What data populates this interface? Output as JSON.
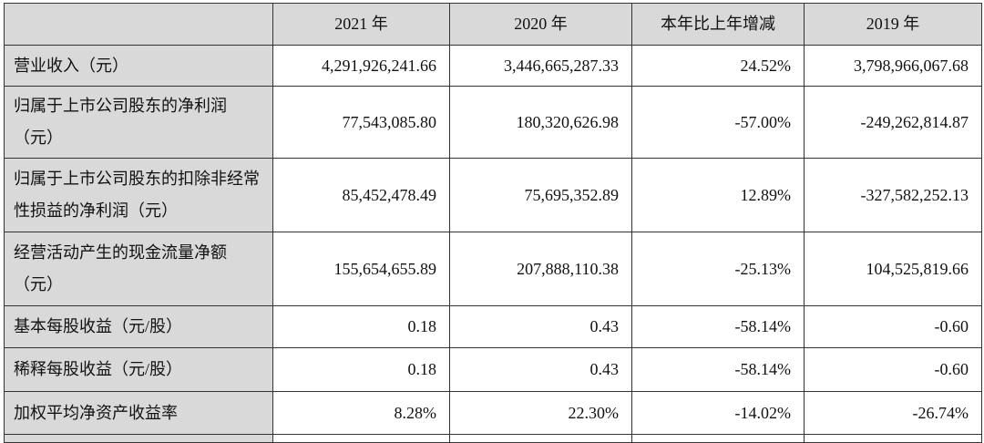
{
  "table": {
    "header": {
      "corner": "",
      "col_2021": "2021 年",
      "col_2020": "2020 年",
      "col_change": "本年比上年增减",
      "col_2019": "2019 年"
    },
    "rows": [
      {
        "label": "营业收入（元）",
        "v2021": "4,291,926,241.66",
        "v2020": "3,446,665,287.33",
        "change": "24.52%",
        "v2019": "3,798,966,067.68"
      },
      {
        "label": "归属于上市公司股东的净利润（元）",
        "v2021": "77,543,085.80",
        "v2020": "180,320,626.98",
        "change": "-57.00%",
        "v2019": "-249,262,814.87"
      },
      {
        "label": "归属于上市公司股东的扣除非经常性损益的净利润（元）",
        "v2021": "85,452,478.49",
        "v2020": "75,695,352.89",
        "change": "12.89%",
        "v2019": "-327,582,252.13"
      },
      {
        "label": "经营活动产生的现金流量净额（元）",
        "v2021": "155,654,655.89",
        "v2020": "207,888,110.38",
        "change": "-25.13%",
        "v2019": "104,525,819.66"
      },
      {
        "label": "基本每股收益（元/股）",
        "v2021": "0.18",
        "v2020": "0.43",
        "change": "-58.14%",
        "v2019": "-0.60"
      },
      {
        "label": "稀释每股收益（元/股）",
        "v2021": "0.18",
        "v2020": "0.43",
        "change": "-58.14%",
        "v2019": "-0.60"
      },
      {
        "label": "加权平均净资产收益率",
        "v2021": "8.28%",
        "v2020": "22.30%",
        "change": "-14.02%",
        "v2019": "-26.74%"
      }
    ]
  }
}
